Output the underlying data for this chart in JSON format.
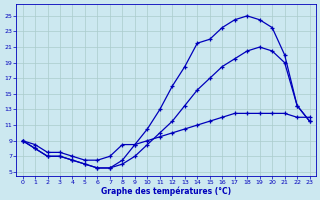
{
  "title": "Graphe des températures (°C)",
  "bg_color": "#cce8f0",
  "line_color": "#0000bb",
  "grid_color": "#aacccc",
  "xlim": [
    -0.5,
    23.5
  ],
  "ylim": [
    4.5,
    26.5
  ],
  "yticks": [
    5,
    7,
    9,
    11,
    13,
    15,
    17,
    19,
    21,
    23,
    25
  ],
  "xticks": [
    0,
    1,
    2,
    3,
    4,
    5,
    6,
    7,
    8,
    9,
    10,
    11,
    12,
    13,
    14,
    15,
    16,
    17,
    18,
    19,
    20,
    21,
    22,
    23
  ],
  "line_top_x": [
    0,
    1,
    2,
    3,
    4,
    5,
    6,
    7,
    8,
    9,
    10,
    11,
    12,
    13,
    14,
    15,
    16,
    17,
    18,
    19,
    20,
    21,
    22,
    23
  ],
  "line_top_y": [
    9,
    8,
    7,
    7,
    6.5,
    6,
    5.5,
    5.5,
    6.5,
    8.5,
    10.5,
    13,
    16,
    18.5,
    21.5,
    22,
    23.5,
    24.5,
    25,
    24.5,
    23.5,
    20,
    13.5,
    11.5
  ],
  "line_mid_x": [
    0,
    1,
    2,
    3,
    4,
    5,
    6,
    7,
    8,
    9,
    10,
    11,
    12,
    13,
    14,
    15,
    16,
    17,
    18,
    19,
    20,
    21,
    22,
    23
  ],
  "line_mid_y": [
    9,
    8,
    7,
    7,
    6.5,
    6,
    5.5,
    5.5,
    6,
    7,
    8.5,
    10,
    11.5,
    13.5,
    15.5,
    17,
    18.5,
    19.5,
    20.5,
    21,
    20.5,
    19,
    13.5,
    11.5
  ],
  "line_bot_x": [
    0,
    1,
    2,
    3,
    4,
    5,
    6,
    7,
    8,
    9,
    10,
    11,
    12,
    13,
    14,
    15,
    16,
    17,
    18,
    19,
    20,
    21,
    22,
    23
  ],
  "line_bot_y": [
    9,
    8.5,
    7.5,
    7.5,
    7,
    6.5,
    6.5,
    7,
    8.5,
    8.5,
    9,
    9.5,
    10,
    10.5,
    11,
    11.5,
    12,
    12.5,
    12.5,
    12.5,
    12.5,
    12.5,
    12,
    12
  ]
}
